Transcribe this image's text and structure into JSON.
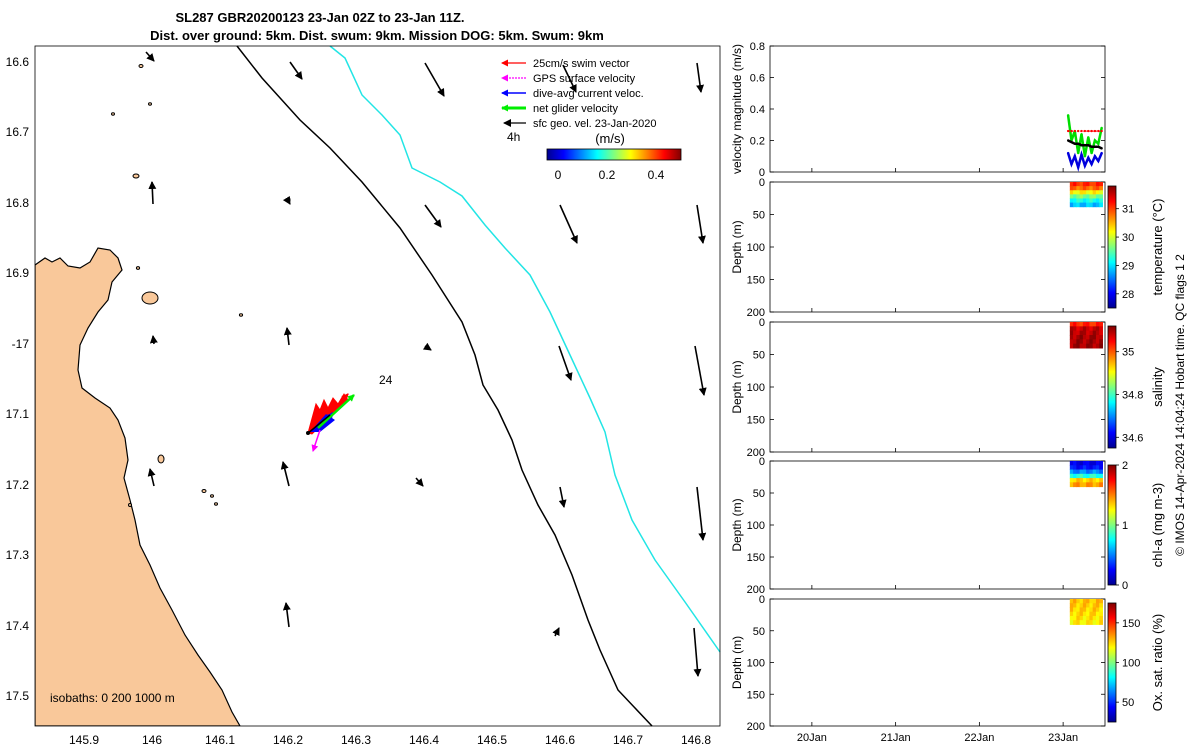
{
  "title": {
    "line1": "SL287 GBR20200123 23-Jan 02Z to 23-Jan 11Z.",
    "line2": "Dist. over ground: 5km. Dist. swum: 9km. Mission DOG: 5km. Swum: 9km"
  },
  "map": {
    "lon_ticks": [
      "145.9",
      "146",
      "146.1",
      "146.2",
      "146.3",
      "146.4",
      "146.5",
      "146.6",
      "146.7",
      "146.8"
    ],
    "lat_ticks": [
      "16.6",
      "16.7",
      "16.8",
      "16.9",
      "-17",
      "17.1",
      "17.2",
      "17.3",
      "17.4",
      "17.5"
    ],
    "legend": [
      {
        "label": "25cm/s swim vector",
        "color": "#ff0000"
      },
      {
        "label": "GPS surface velocity",
        "color": "#ff00ff"
      },
      {
        "label": "dive-avg current veloc.",
        "color": "#0000ff"
      },
      {
        "label": "net glider velocity",
        "color": "#00ee00"
      },
      {
        "label": "sfc geo. vel. 23-Jan-2020",
        "color": "#000000"
      }
    ],
    "hours_label": "4h",
    "colorbar_title": "(m/s)",
    "colorbar_ticks": [
      "0",
      "0.2",
      "0.4"
    ],
    "annotation": "24",
    "isobaths_label": "isobaths: 0   200  1000 m",
    "land_color": "#f9c89a",
    "isobath_200_color": "#000000",
    "isobath_1000_color": "#22e5e5"
  },
  "chart_data": [
    {
      "type": "line",
      "ylabel": "velocity magnitude (m/s)",
      "ylim": [
        0,
        0.8
      ],
      "y_ticks": [
        "0",
        "0.2",
        "0.4",
        "0.6",
        "0.8"
      ],
      "x_ticks": [
        "20Jan",
        "21Jan",
        "22Jan",
        "23Jan"
      ],
      "series": [
        {
          "color": "#00dd00",
          "x": [
            23.06,
            23.1,
            23.14,
            23.18,
            23.22,
            23.26,
            23.3,
            23.34,
            23.38,
            23.42,
            23.46
          ],
          "y": [
            0.36,
            0.2,
            0.26,
            0.12,
            0.24,
            0.1,
            0.22,
            0.12,
            0.2,
            0.18,
            0.28
          ]
        },
        {
          "color": "#0000dd",
          "x": [
            23.06,
            23.1,
            23.14,
            23.18,
            23.22,
            23.26,
            23.3,
            23.34,
            23.38,
            23.42,
            23.46
          ],
          "y": [
            0.12,
            0.05,
            0.1,
            0.03,
            0.11,
            0.04,
            0.09,
            0.05,
            0.1,
            0.07,
            0.12
          ]
        },
        {
          "color": "#000000",
          "x": [
            23.06,
            23.1,
            23.14,
            23.18,
            23.22,
            23.26,
            23.3,
            23.34,
            23.38,
            23.42,
            23.46
          ],
          "y": [
            0.2,
            0.19,
            0.18,
            0.18,
            0.17,
            0.17,
            0.17,
            0.16,
            0.16,
            0.16,
            0.15
          ]
        },
        {
          "color": "#ff0000",
          "x": [
            23.06,
            23.1,
            23.14,
            23.18,
            23.22,
            23.26,
            23.3,
            23.34,
            23.38,
            23.42,
            23.46
          ],
          "y": [
            0.26,
            0.26,
            0.26,
            0.26,
            0.26,
            0.26,
            0.26,
            0.26,
            0.26,
            0.26,
            0.26
          ]
        }
      ]
    },
    {
      "type": "heatmap",
      "ylabel": "Depth (m)",
      "y_ticks": [
        "0",
        "50",
        "100",
        "150",
        "200"
      ],
      "ylim": [
        200,
        0
      ],
      "colorbar_label": "temperature (°C)",
      "colorbar_ticks": [
        "28",
        "29",
        "30",
        "31"
      ],
      "clim": [
        27.5,
        31.8
      ],
      "x_range": [
        23.08,
        23.47
      ],
      "depth_range": [
        0,
        38
      ],
      "profile": [
        {
          "depth": 0,
          "value": 31.2
        },
        {
          "depth": 10,
          "value": 30.8
        },
        {
          "depth": 20,
          "value": 29.8
        },
        {
          "depth": 30,
          "value": 29.1
        },
        {
          "depth": 38,
          "value": 28.7
        }
      ]
    },
    {
      "type": "heatmap",
      "ylabel": "Depth (m)",
      "y_ticks": [
        "0",
        "50",
        "100",
        "150",
        "200"
      ],
      "ylim": [
        200,
        0
      ],
      "colorbar_label": "salinity",
      "colorbar_ticks": [
        "34.6",
        "34.8",
        "35"
      ],
      "clim": [
        34.55,
        35.12
      ],
      "x_range": [
        23.08,
        23.47
      ],
      "depth_range": [
        0,
        40
      ],
      "profile": [
        {
          "depth": 0,
          "value": 35.0
        },
        {
          "depth": 10,
          "value": 35.08
        },
        {
          "depth": 25,
          "value": 35.1
        },
        {
          "depth": 40,
          "value": 35.1
        }
      ]
    },
    {
      "type": "heatmap",
      "ylabel": "Depth (m)",
      "y_ticks": [
        "0",
        "50",
        "100",
        "150",
        "200"
      ],
      "ylim": [
        200,
        0
      ],
      "colorbar_label": "chl-a (mg m-3)",
      "colorbar_ticks": [
        "0",
        "1",
        "2"
      ],
      "clim": [
        0,
        2
      ],
      "x_range": [
        23.08,
        23.47
      ],
      "depth_range": [
        0,
        40
      ],
      "profile": [
        {
          "depth": 0,
          "value": 0.15
        },
        {
          "depth": 12,
          "value": 0.3
        },
        {
          "depth": 25,
          "value": 0.9
        },
        {
          "depth": 33,
          "value": 1.6
        },
        {
          "depth": 40,
          "value": 1.3
        }
      ]
    },
    {
      "type": "heatmap",
      "ylabel": "Depth (m)",
      "y_ticks": [
        "0",
        "50",
        "100",
        "150",
        "200"
      ],
      "ylim": [
        200,
        0
      ],
      "colorbar_label": "Ox. sat. ratio (%)",
      "colorbar_ticks": [
        "50",
        "100",
        "150"
      ],
      "clim": [
        25,
        175
      ],
      "x_range": [
        23.08,
        23.47
      ],
      "depth_range": [
        0,
        40
      ],
      "profile": [
        {
          "depth": 0,
          "value": 128
        },
        {
          "depth": 20,
          "value": 125
        },
        {
          "depth": 40,
          "value": 120
        }
      ]
    }
  ],
  "side_note": "© IMOS 14-Apr-2024 14:04:24 Hobart time. QC flags 1  2"
}
